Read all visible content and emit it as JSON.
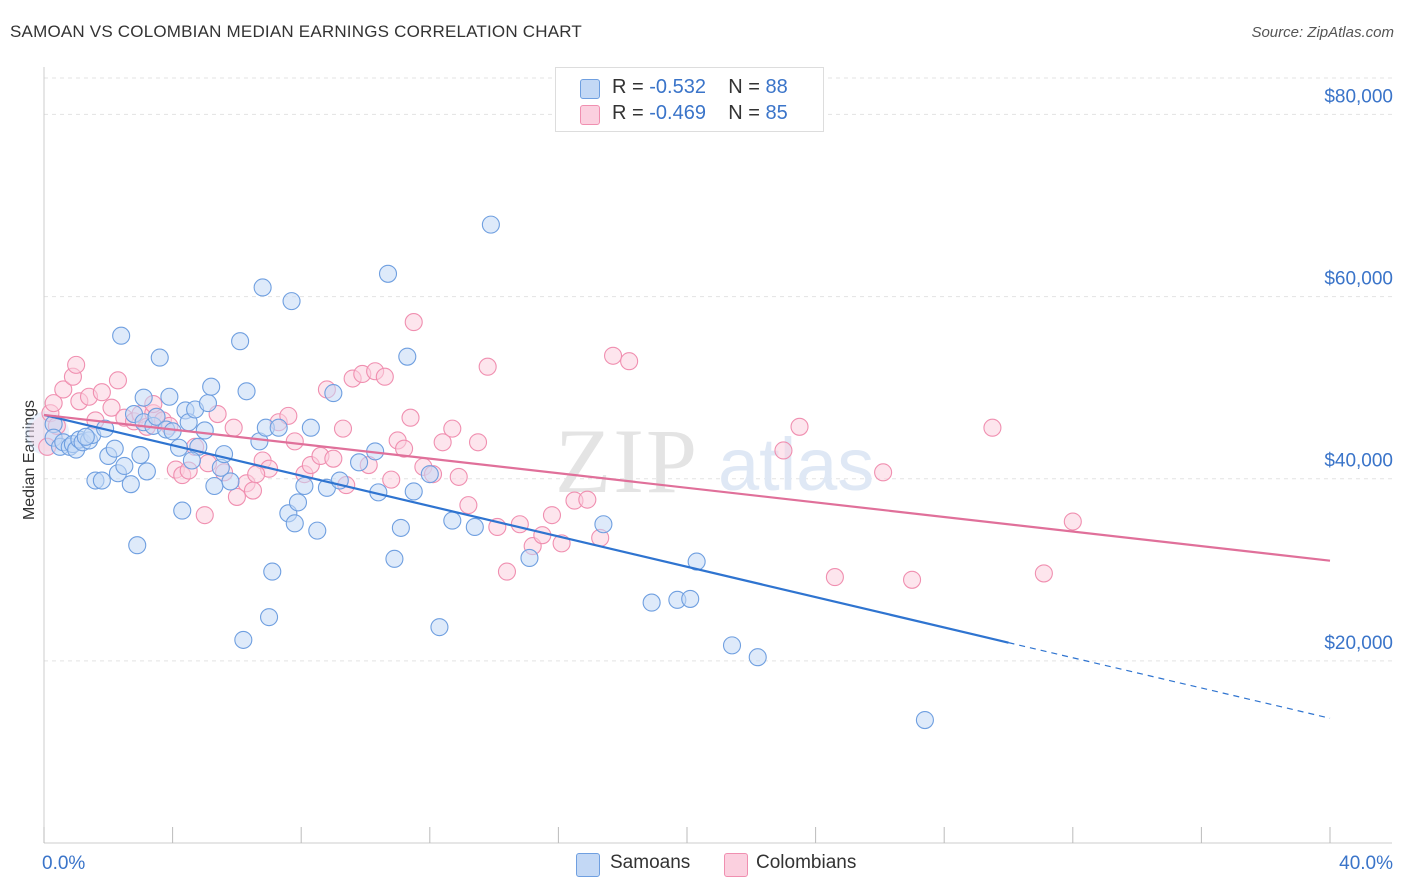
{
  "title": "SAMOAN VS COLOMBIAN MEDIAN EARNINGS CORRELATION CHART",
  "source": "Source: ZipAtlas.com",
  "watermark": {
    "zip": "ZIP",
    "atlas": "atlas"
  },
  "legend": {
    "rows": [
      {
        "r_label": "R =",
        "r_value": "-0.532",
        "n_label": "N =",
        "n_value": "88"
      },
      {
        "r_label": "R =",
        "r_value": "-0.469",
        "n_label": "N =",
        "n_value": "85"
      }
    ]
  },
  "bottom_legend": {
    "samoans": "Samoans",
    "colombians": "Colombians"
  },
  "colors": {
    "samoans": "#6f9fe0",
    "samoans_line": "#2f74d0",
    "colombians": "#f08fb0",
    "colombians_line": "#e0709a",
    "axis_text": "#3a74c9"
  },
  "chart_data": {
    "type": "scatter",
    "xlabel": "",
    "ylabel": "Median Earnings",
    "xlim": [
      0,
      40
    ],
    "ylim": [
      0,
      84000
    ],
    "x_tick_labels": [
      {
        "value": 0,
        "label": "0.0%"
      },
      {
        "value": 40,
        "label": "40.0%"
      }
    ],
    "y_ticks": [
      {
        "value": 20000,
        "label": "$20,000"
      },
      {
        "value": 40000,
        "label": "$40,000"
      },
      {
        "value": 60000,
        "label": "$60,000"
      },
      {
        "value": 80000,
        "label": "$80,000"
      }
    ],
    "grid": true,
    "legend_position": "top-center",
    "series": [
      {
        "name": "Samoans",
        "points": [
          [
            0.3,
            46000
          ],
          [
            0.3,
            44500
          ],
          [
            0.5,
            43500
          ],
          [
            0.6,
            44000
          ],
          [
            0.8,
            43500
          ],
          [
            0.9,
            43800
          ],
          [
            1.0,
            43200
          ],
          [
            1.1,
            44300
          ],
          [
            1.2,
            44000
          ],
          [
            1.4,
            44200
          ],
          [
            1.5,
            44800
          ],
          [
            1.6,
            39800
          ],
          [
            1.8,
            39800
          ],
          [
            1.9,
            45500
          ],
          [
            2.0,
            42500
          ],
          [
            2.2,
            43300
          ],
          [
            2.3,
            40600
          ],
          [
            2.4,
            55700
          ],
          [
            2.5,
            41400
          ],
          [
            2.7,
            39400
          ],
          [
            2.8,
            47100
          ],
          [
            2.9,
            32700
          ],
          [
            3.0,
            42600
          ],
          [
            3.1,
            46200
          ],
          [
            3.1,
            48900
          ],
          [
            3.2,
            40800
          ],
          [
            3.4,
            45800
          ],
          [
            3.5,
            46800
          ],
          [
            3.6,
            53300
          ],
          [
            3.8,
            45400
          ],
          [
            3.9,
            49000
          ],
          [
            4.0,
            45200
          ],
          [
            4.2,
            43400
          ],
          [
            4.3,
            36500
          ],
          [
            4.4,
            47500
          ],
          [
            4.5,
            46200
          ],
          [
            4.7,
            47600
          ],
          [
            4.8,
            43500
          ],
          [
            5.0,
            45300
          ],
          [
            5.1,
            48300
          ],
          [
            5.2,
            50100
          ],
          [
            5.3,
            39200
          ],
          [
            5.5,
            41200
          ],
          [
            5.6,
            42700
          ],
          [
            5.8,
            39700
          ],
          [
            6.1,
            55100
          ],
          [
            6.2,
            22300
          ],
          [
            6.3,
            49600
          ],
          [
            6.7,
            44100
          ],
          [
            6.8,
            61000
          ],
          [
            6.9,
            45600
          ],
          [
            7.0,
            24800
          ],
          [
            7.1,
            29800
          ],
          [
            7.3,
            45600
          ],
          [
            7.6,
            36200
          ],
          [
            7.7,
            59500
          ],
          [
            7.8,
            35100
          ],
          [
            7.9,
            37400
          ],
          [
            8.1,
            39200
          ],
          [
            8.3,
            45600
          ],
          [
            8.5,
            34300
          ],
          [
            8.8,
            39000
          ],
          [
            9.0,
            49400
          ],
          [
            9.2,
            39800
          ],
          [
            10.3,
            43000
          ],
          [
            10.4,
            38500
          ],
          [
            10.7,
            62500
          ],
          [
            10.9,
            31200
          ],
          [
            11.1,
            34600
          ],
          [
            11.3,
            53400
          ],
          [
            11.5,
            38600
          ],
          [
            12.0,
            40500
          ],
          [
            12.3,
            23700
          ],
          [
            12.7,
            35400
          ],
          [
            13.9,
            67900
          ],
          [
            15.1,
            31300
          ],
          [
            17.4,
            35000
          ],
          [
            18.9,
            26400
          ],
          [
            19.7,
            26700
          ],
          [
            20.1,
            26800
          ],
          [
            20.3,
            30900
          ],
          [
            21.4,
            21700
          ],
          [
            22.2,
            20400
          ],
          [
            27.4,
            13500
          ],
          [
            4.6,
            42000
          ],
          [
            9.8,
            41800
          ],
          [
            13.4,
            34700
          ],
          [
            1.3,
            44600
          ]
        ],
        "trend": {
          "x_start": 0,
          "y_start": 47000,
          "x_solid_end": 30,
          "y_solid_end": 22000,
          "x_dash_end": 40,
          "y_dash_end": 13700
        }
      },
      {
        "name": "Colombians",
        "points": [
          [
            0.1,
            43500
          ],
          [
            0.2,
            47200
          ],
          [
            0.3,
            48300
          ],
          [
            0.4,
            45800
          ],
          [
            0.6,
            49800
          ],
          [
            0.9,
            51200
          ],
          [
            1.0,
            52500
          ],
          [
            1.1,
            48500
          ],
          [
            1.4,
            49000
          ],
          [
            1.6,
            46400
          ],
          [
            1.8,
            49500
          ],
          [
            2.1,
            47800
          ],
          [
            2.3,
            50800
          ],
          [
            2.5,
            46700
          ],
          [
            2.8,
            46300
          ],
          [
            3.0,
            47100
          ],
          [
            3.2,
            45700
          ],
          [
            3.4,
            47200
          ],
          [
            3.5,
            46800
          ],
          [
            3.7,
            46400
          ],
          [
            3.9,
            45800
          ],
          [
            4.1,
            41000
          ],
          [
            4.3,
            40400
          ],
          [
            4.5,
            40900
          ],
          [
            4.7,
            43500
          ],
          [
            5.0,
            36000
          ],
          [
            5.1,
            41700
          ],
          [
            5.4,
            47100
          ],
          [
            5.6,
            40700
          ],
          [
            5.9,
            45600
          ],
          [
            6.0,
            38000
          ],
          [
            6.3,
            39500
          ],
          [
            6.5,
            38700
          ],
          [
            6.8,
            42000
          ],
          [
            7.0,
            41100
          ],
          [
            7.3,
            46200
          ],
          [
            7.6,
            46900
          ],
          [
            7.8,
            44100
          ],
          [
            8.1,
            40500
          ],
          [
            8.3,
            41500
          ],
          [
            8.6,
            42500
          ],
          [
            8.8,
            49800
          ],
          [
            9.0,
            42200
          ],
          [
            9.3,
            45500
          ],
          [
            9.6,
            51000
          ],
          [
            9.9,
            51500
          ],
          [
            10.1,
            41500
          ],
          [
            10.3,
            51800
          ],
          [
            10.6,
            51200
          ],
          [
            10.8,
            39900
          ],
          [
            11.0,
            44200
          ],
          [
            11.2,
            43300
          ],
          [
            11.4,
            46700
          ],
          [
            11.5,
            57200
          ],
          [
            11.8,
            41300
          ],
          [
            12.1,
            40500
          ],
          [
            12.4,
            44000
          ],
          [
            12.7,
            45500
          ],
          [
            12.9,
            40200
          ],
          [
            13.2,
            37100
          ],
          [
            13.5,
            44000
          ],
          [
            13.8,
            52300
          ],
          [
            14.1,
            34700
          ],
          [
            14.4,
            29800
          ],
          [
            14.8,
            35000
          ],
          [
            15.2,
            32600
          ],
          [
            15.5,
            33800
          ],
          [
            15.8,
            36000
          ],
          [
            16.1,
            32900
          ],
          [
            16.5,
            37600
          ],
          [
            16.9,
            37700
          ],
          [
            17.3,
            33500
          ],
          [
            17.7,
            53500
          ],
          [
            18.2,
            52900
          ],
          [
            23.0,
            43100
          ],
          [
            23.5,
            45700
          ],
          [
            24.6,
            29200
          ],
          [
            26.1,
            40700
          ],
          [
            27.0,
            28900
          ],
          [
            29.5,
            45600
          ],
          [
            31.1,
            29600
          ],
          [
            32.0,
            35300
          ],
          [
            3.4,
            48200
          ],
          [
            6.6,
            40500
          ],
          [
            9.4,
            39300
          ]
        ],
        "trend": {
          "x_start": 0,
          "y_start": 47000,
          "x_end": 40,
          "y_end": 31000
        }
      }
    ]
  }
}
